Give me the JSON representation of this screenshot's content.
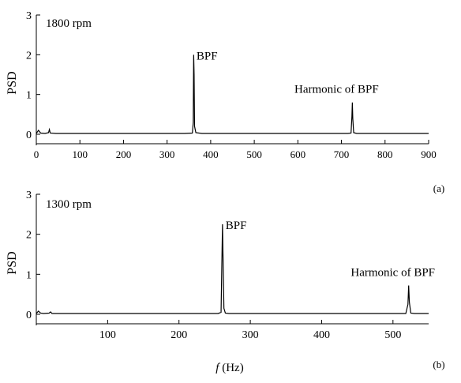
{
  "chart_data": [
    {
      "type": "line",
      "annotation_speed": "1800 rpm",
      "panel_label": "(a)",
      "ylabel": "PSD",
      "xlabel": "",
      "xlim": [
        0,
        900
      ],
      "ylim": [
        0,
        3
      ],
      "x_ticks": [
        0,
        100,
        200,
        300,
        400,
        500,
        600,
        700,
        800,
        900
      ],
      "y_ticks": [
        0,
        1,
        2,
        3
      ],
      "grid": false,
      "series": [
        {
          "x": [
            0,
            5,
            10,
            20,
            28,
            30,
            32,
            45,
            60,
            100,
            150,
            200,
            250,
            300,
            340,
            358,
            360,
            361,
            362,
            363,
            366,
            380,
            400,
            500,
            600,
            700,
            715,
            722,
            724,
            725,
            726,
            728,
            735,
            760,
            800,
            850,
            900
          ],
          "y": [
            0.02,
            0.1,
            0.03,
            0.02,
            0.04,
            0.12,
            0.03,
            0.02,
            0.02,
            0.02,
            0.02,
            0.02,
            0.02,
            0.02,
            0.02,
            0.03,
            0.3,
            2.0,
            1.5,
            0.2,
            0.04,
            0.02,
            0.02,
            0.02,
            0.02,
            0.02,
            0.02,
            0.03,
            0.45,
            0.8,
            0.4,
            0.04,
            0.02,
            0.02,
            0.02,
            0.02,
            0.02
          ]
        }
      ],
      "annotations": [
        {
          "text": "BPF",
          "x": 362,
          "y": 2.0
        },
        {
          "text": "Harmonic of BPF",
          "x": 725,
          "y": 0.8
        }
      ]
    },
    {
      "type": "line",
      "annotation_speed": "1300 rpm",
      "panel_label": "(b)",
      "ylabel": "PSD",
      "xlabel": "f (Hz)",
      "xlim": [
        0,
        550
      ],
      "ylim": [
        0,
        3
      ],
      "x_ticks": [
        100,
        200,
        300,
        400,
        500
      ],
      "x_tick_labels": [
        "100",
        "200",
        "300",
        "400",
        "500"
      ],
      "y_ticks": [
        0,
        1,
        2,
        3
      ],
      "grid": false,
      "series": [
        {
          "x": [
            0,
            3,
            6,
            10,
            18,
            20,
            22,
            40,
            80,
            120,
            160,
            200,
            240,
            255,
            259,
            261,
            262,
            263,
            265,
            270,
            300,
            350,
            400,
            450,
            500,
            518,
            521,
            522,
            523,
            525,
            530,
            550
          ],
          "y": [
            0.02,
            0.08,
            0.03,
            0.02,
            0.03,
            0.06,
            0.02,
            0.02,
            0.02,
            0.02,
            0.02,
            0.02,
            0.02,
            0.02,
            0.05,
            2.25,
            1.2,
            0.15,
            0.03,
            0.02,
            0.02,
            0.02,
            0.02,
            0.02,
            0.02,
            0.02,
            0.25,
            0.72,
            0.3,
            0.03,
            0.02,
            0.02
          ]
        }
      ],
      "annotations": [
        {
          "text": "BPF",
          "x": 262,
          "y": 2.25
        },
        {
          "text": "Harmonic of BPF",
          "x": 522,
          "y": 0.72
        }
      ]
    }
  ]
}
